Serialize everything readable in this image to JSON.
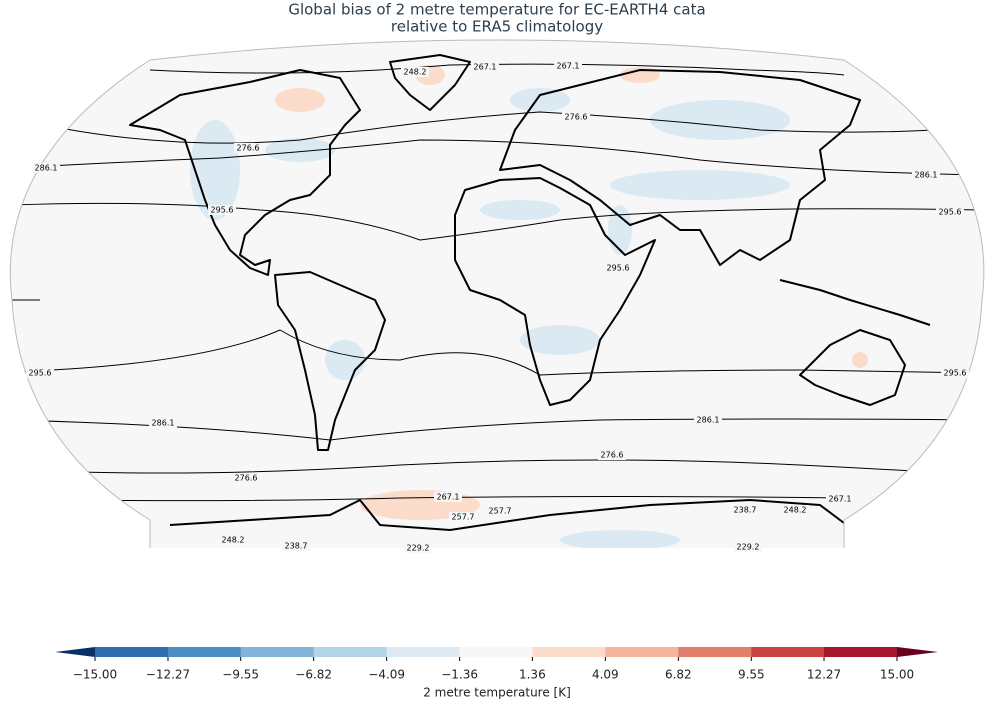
{
  "chart_data": {
    "type": "map",
    "title": [
      "Global bias of 2 metre temperature for EC-EARTH4 cata",
      "relative to ERA5 climatology"
    ],
    "contour_levels": [
      229.2,
      238.7,
      248.2,
      257.7,
      267.1,
      276.6,
      286.1,
      295.6
    ],
    "colorbar": {
      "label": "2 metre temperature [K]",
      "ticks": [
        {
          "value": -15,
          "label": "−15.00"
        },
        {
          "value": -12.27,
          "label": "−12.27"
        },
        {
          "value": -9.55,
          "label": "−9.55"
        },
        {
          "value": -6.82,
          "label": "−6.82"
        },
        {
          "value": -4.09,
          "label": "−4.09"
        },
        {
          "value": -1.36,
          "label": "−1.36"
        },
        {
          "value": 1.36,
          "label": "1.36"
        },
        {
          "value": 4.09,
          "label": "4.09"
        },
        {
          "value": 6.82,
          "label": "6.82"
        },
        {
          "value": 9.55,
          "label": "9.55"
        },
        {
          "value": 12.27,
          "label": "12.27"
        },
        {
          "value": 15,
          "label": "15.00"
        }
      ],
      "colors": [
        "#2f6db1",
        "#4b8ec5",
        "#80b5d8",
        "#b4d4e8",
        "#dde9f3",
        "#f7f7f7",
        "#fbdcca",
        "#f4b59a",
        "#e0806a",
        "#c94340",
        "#a6172e"
      ],
      "extend_colors": [
        "#063163",
        "#68011f"
      ]
    }
  }
}
